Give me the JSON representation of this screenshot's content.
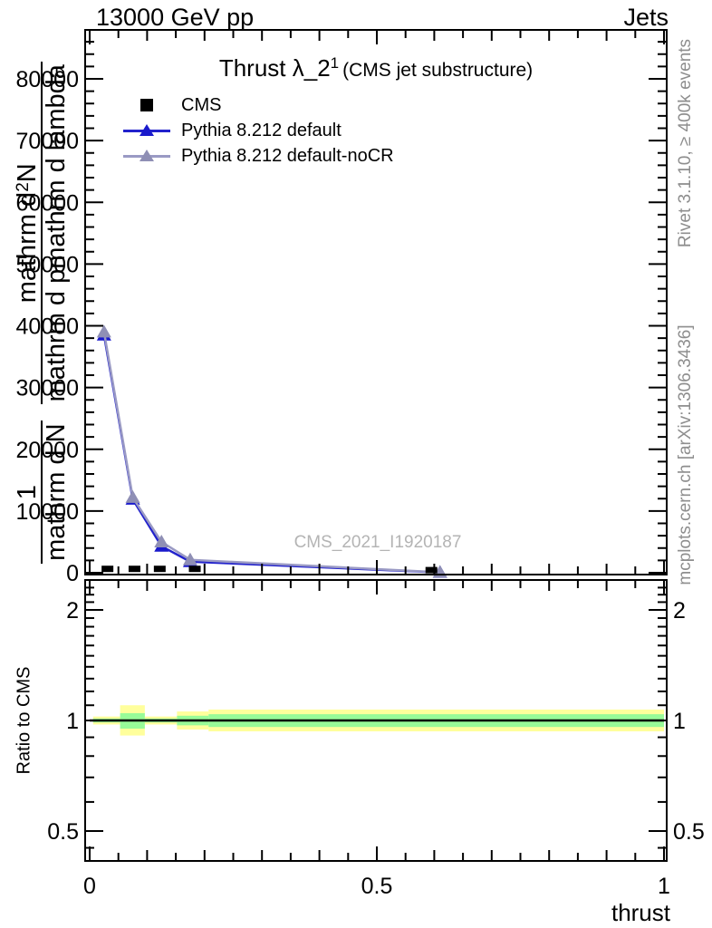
{
  "header": {
    "left": "13000 GeV pp",
    "right": "Jets"
  },
  "plot_title": {
    "main": "Thrust λ_2",
    "superscript": "1",
    "paren": "(CMS jet substructure)"
  },
  "legend": {
    "items": [
      {
        "label": "CMS",
        "marker": "black-square"
      },
      {
        "label": "Pythia 8.212 default",
        "marker": "blue-triangle-line"
      },
      {
        "label": "Pythia 8.212 default-noCR",
        "marker": "gray-triangle-line"
      }
    ]
  },
  "watermark": "CMS_2021_I1920187",
  "side_texts": {
    "top_right": "Rivet 3.1.10, ≥ 400k events",
    "bottom_right": "mcplots.cern.ch [arXiv:1306.3436]"
  },
  "y_axis_label": {
    "frac1_num": "1",
    "frac1_den": "mathrm d N",
    "frac2_num_base": "mathrm d",
    "frac2_num_sup": "2",
    "frac2_num_tail": "N",
    "frac2_den": "mathrm d pmathrm d lambda"
  },
  "x_axis_label": "thrust",
  "colors": {
    "pythia_default": "#2222cc",
    "pythia_default_marker": "#1a1acc",
    "pythia_nocr": "#9a9ac4",
    "pythia_nocr_marker": "#8f8fb5",
    "cms_marker": "#000000",
    "band_outer": "#ffff9c",
    "band_inner": "#98fb98",
    "side_text_gray": "#8e8e8e",
    "watermark_gray": "#b4b4b4"
  },
  "chart_data": {
    "type": "line",
    "title": "Thrust λ_2^1 (CMS jet substructure)",
    "xlabel": "thrust",
    "ylabel_mangled": "1/(mathrm d N) (mathrm d^2 N)/(mathrm d p mathrm d lambda)",
    "xlim": [
      0,
      1
    ],
    "ylim": [
      0,
      88000
    ],
    "grid": false,
    "legend_position": "upper left",
    "x_major_ticks": [
      0,
      0.5,
      1
    ],
    "x_tick_labels": [
      "0",
      "0.5",
      "1"
    ],
    "x_minor_step": 0.05,
    "y_major_ticks": [
      0,
      10000,
      20000,
      30000,
      40000,
      50000,
      60000,
      70000,
      80000
    ],
    "y_tick_labels": [
      "0",
      "10000",
      "20000",
      "30000",
      "40000",
      "50000",
      "60000",
      "70000",
      "80000"
    ],
    "y_minor_step": 2000,
    "series": [
      {
        "name": "CMS",
        "type": "scatter",
        "marker": "square",
        "color": "#000000",
        "x": [
          0.031,
          0.078,
          0.122,
          0.183,
          0.595
        ],
        "y": [
          700,
          700,
          700,
          700,
          500
        ]
      },
      {
        "name": "Pythia 8.212 default",
        "type": "line",
        "marker": "triangle-up",
        "color": "#2222cc",
        "marker_color": "#1a1acc",
        "x": [
          0.025,
          0.075,
          0.125,
          0.175,
          0.61
        ],
        "y": [
          38500,
          11900,
          4300,
          1800,
          60
        ]
      },
      {
        "name": "Pythia 8.212 default-noCR",
        "type": "line",
        "marker": "triangle-up",
        "color": "#9a9ac4",
        "marker_color": "#8f8fb5",
        "x": [
          0.025,
          0.075,
          0.125,
          0.175,
          0.61
        ],
        "y": [
          39000,
          12200,
          5000,
          2100,
          80
        ]
      }
    ],
    "ratio_panel": {
      "ylabel": "Ratio to CMS",
      "yscale": "log",
      "ylim": [
        0.414,
        2.41
      ],
      "y_major_ticks": [
        0.5,
        1,
        2
      ],
      "y_tick_labels": [
        "0.5",
        "1",
        "2"
      ],
      "y_minor_ticks": [
        0.45,
        0.6,
        0.7,
        0.8,
        0.9,
        1.1,
        1.2,
        1.3,
        1.4,
        1.5,
        1.6,
        1.7,
        1.8,
        1.9,
        2.1,
        2.2,
        2.3,
        2.4
      ],
      "reference_line": 1.0,
      "bands": [
        {
          "x0": 0.006,
          "x1": 0.053,
          "outer": [
            0.975,
            1.025
          ],
          "inner": [
            0.988,
            1.012
          ]
        },
        {
          "x0": 0.053,
          "x1": 0.096,
          "outer": [
            0.91,
            1.1
          ],
          "inner": [
            0.95,
            1.047
          ]
        },
        {
          "x0": 0.096,
          "x1": 0.152,
          "outer": [
            0.975,
            1.025
          ],
          "inner": [
            0.988,
            1.012
          ]
        },
        {
          "x0": 0.152,
          "x1": 0.207,
          "outer": [
            0.945,
            1.058
          ],
          "inner": [
            0.97,
            1.03
          ]
        },
        {
          "x0": 0.207,
          "x1": 1.0,
          "outer": [
            0.934,
            1.071
          ],
          "inner": [
            0.96,
            1.04
          ]
        }
      ]
    }
  }
}
